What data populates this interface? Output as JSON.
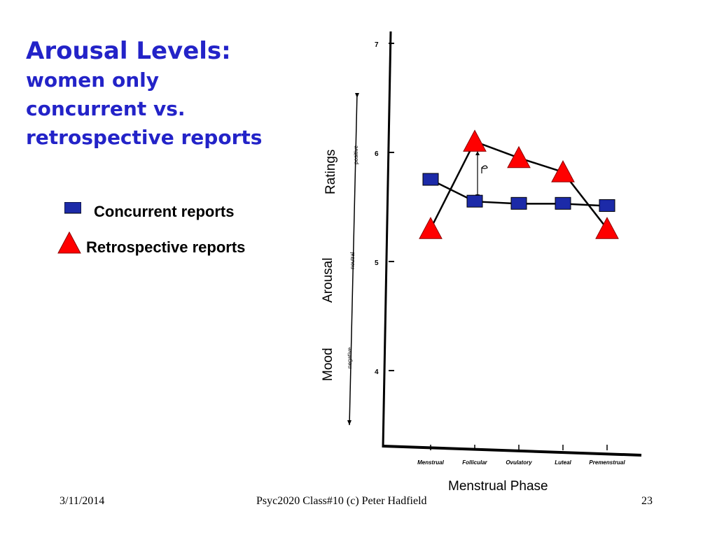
{
  "title": {
    "main": "Arousal Levels:",
    "sub_lines": [
      "women only",
      "concurrent vs.",
      "retrospective reports"
    ]
  },
  "legend": [
    {
      "label": "Concurrent reports",
      "marker": "square",
      "color": "#1c2aa8"
    },
    {
      "label": "Retrospective reports",
      "marker": "triangle",
      "color": "#ff0000"
    }
  ],
  "chart_data": {
    "type": "line",
    "categories": [
      "Menstrual",
      "Follicular",
      "Ovulatory",
      "Luteal",
      "Premenstrual"
    ],
    "series": [
      {
        "name": "Concurrent reports",
        "marker": "square",
        "color": "#1c2aa8",
        "values": [
          5.75,
          5.55,
          5.53,
          5.53,
          5.51
        ]
      },
      {
        "name": "Retrospective reports",
        "marker": "triangle",
        "color": "#ff0000",
        "values": [
          5.3,
          6.1,
          5.95,
          5.82,
          5.3
        ]
      }
    ],
    "ylim": [
      3.4,
      7.0
    ],
    "yticks": [
      4,
      5,
      6,
      7
    ],
    "xlabel": "Menstrual Phase",
    "ylabel_parts": [
      "Mood",
      "Arousal",
      "Ratings"
    ],
    "scale_labels": [
      "negative",
      "neutral",
      "positive"
    ],
    "grid": false
  },
  "footer": {
    "date": "3/11/2014",
    "course": "Psyc2020 Class#10 (c) Peter Hadfield",
    "page": "23"
  }
}
